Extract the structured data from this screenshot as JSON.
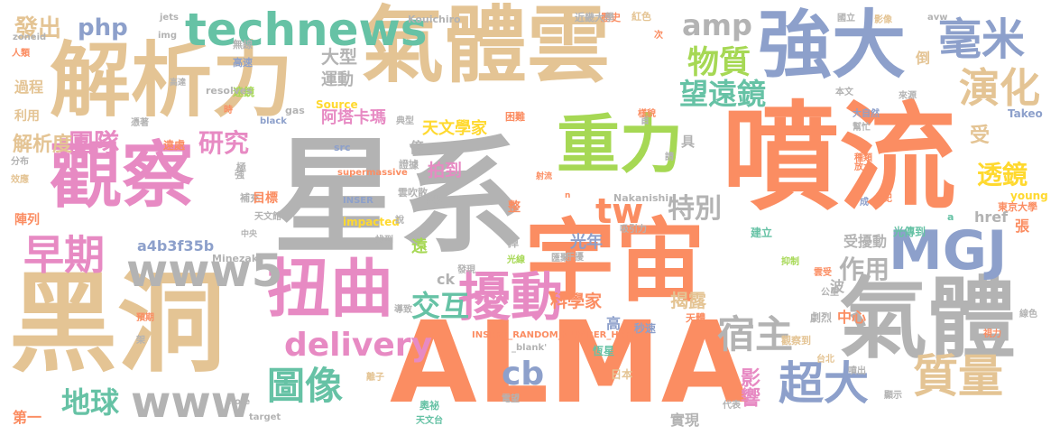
{
  "colors": {
    "orange": "#fb8d62",
    "tan": "#e4c494",
    "gray": "#b3b3b3",
    "blue": "#8da0cb",
    "green": "#a6d854",
    "teal": "#66c2a5",
    "pink": "#e78ac3",
    "yellow": "#ffd92f",
    "background": "#ffffff"
  },
  "words": [
    "星系",
    "噴流",
    "黑洞",
    "ALMA",
    "氣體雲",
    "解析力",
    "宇宙",
    "觀察",
    "重力",
    "強大",
    "氣體",
    "扭曲",
    "擾動",
    "MGJ",
    "technews",
    "毫米",
    "演化",
    "物質",
    "望遠鏡",
    "amp",
    "團隊",
    "研究",
    "早期",
    "www5",
    "www",
    "delivery",
    "宿主",
    "超大",
    "質量",
    "圖像",
    "地球",
    "交互",
    "tw",
    "cb",
    "特別",
    "作用",
    "php",
    "發出",
    "過程",
    "利用",
    "解析度",
    "大型",
    "運動",
    "阿塔卡瑪",
    "天文學家",
    "透鏡",
    "受",
    "拍到",
    "光年",
    "科學家",
    "揭露",
    "影響",
    "a4b3f35b",
    "href",
    "ck",
    "高",
    "中心",
    "受擾動",
    "波",
    "張",
    "遠",
    "東京大學",
    "young",
    "第一",
    "陣列",
    "極",
    "效應",
    "分布",
    "強",
    "src",
    "supermassive",
    "INSER",
    "impacted",
    "Source",
    "Nakanishi",
    "Minezaki",
    "Takeo",
    "Kouichiro",
    "jets",
    "img",
    "zoneid",
    "人類",
    "無線",
    "高速",
    "遠鏡",
    "憑著",
    "遠處",
    "雲吹散",
    "證據",
    "困難",
    "具",
    "億",
    "典型",
    "轉載",
    "說",
    "整",
    "掉",
    "發現",
    "光線",
    "導致",
    "實現",
    "奧祕",
    "電望",
    "天文台",
    "INSERT_RANDOM_NUMBER_HERE'",
    "_blank'",
    "日本",
    "恆星",
    "秒速",
    "天體",
    "觀察到",
    "吸引力",
    "建立",
    "光傳到",
    "抑制",
    "雲受",
    "公里",
    "視力",
    "線色",
    "台北",
    "噴出",
    "顯示",
    "代表",
    "target",
    "hole",
    "離子",
    "black",
    "gas",
    "時",
    "首",
    "來源",
    "本文",
    "紅色",
    "歷史",
    "近畿大學",
    "國立",
    "avw",
    "影像",
    "倒",
    "次",
    "大自然",
    "幫忙",
    "種類",
    "放大",
    "年紀",
    "成",
    "樣貌",
    "請",
    "架",
    "預期",
    "中央",
    "天文館",
    "補充",
    "目標",
    "n",
    "射流",
    "干擾",
    "匯聚",
    "找到",
    "劇烈",
    "a",
    "resolves",
    "高達",
    "圖",
    "目標鏡"
  ]
}
